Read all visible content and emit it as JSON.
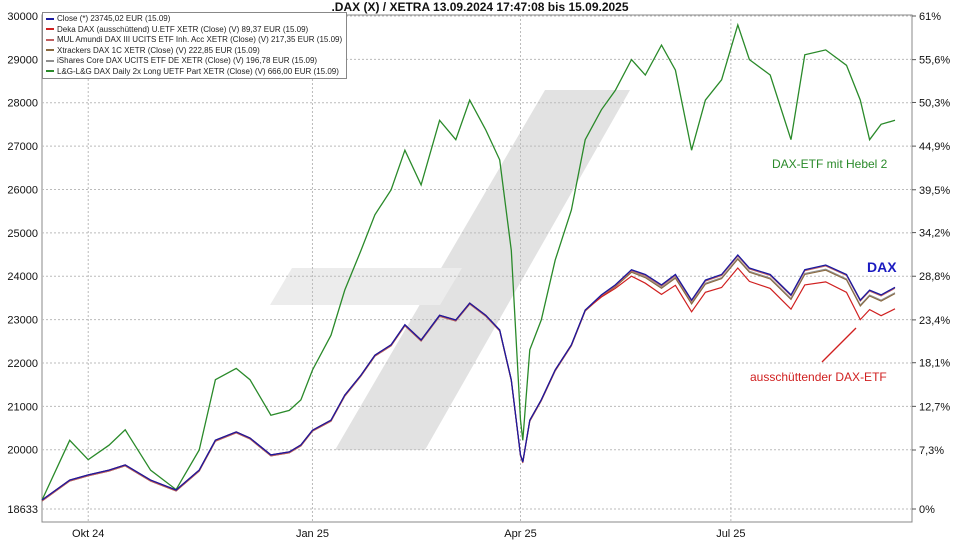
{
  "chart_data": {
    "type": "line",
    "title": ".DAX (X) / XETRA 13.09.2024 17:47:08 bis 15.09.2025",
    "x_days": [
      0,
      12,
      20,
      29,
      36,
      47,
      58,
      68,
      75,
      84,
      90,
      99,
      107,
      112,
      117,
      125,
      131,
      138,
      144,
      151,
      157,
      164,
      172,
      179,
      185,
      192,
      198,
      203,
      207,
      208,
      211,
      216,
      222,
      229,
      235,
      242,
      248,
      255,
      261,
      268,
      274,
      281,
      287,
      294,
      301,
      306,
      315,
      324,
      330,
      339,
      348,
      354,
      358,
      363,
      369
    ],
    "xlim": [
      0,
      369
    ],
    "x_ticks": [
      {
        "day": 20,
        "label": "Okt 24"
      },
      {
        "day": 117,
        "label": "Jan 25"
      },
      {
        "day": 207,
        "label": "Apr 25"
      },
      {
        "day": 298,
        "label": "Jul 25"
      }
    ],
    "ylim_left": [
      18633,
      30000
    ],
    "y_ticks_left": [
      "30000",
      "29000",
      "28000",
      "27000",
      "26000",
      "25000",
      "24000",
      "23000",
      "22000",
      "21000",
      "20000",
      "18633"
    ],
    "y_tick_values_left": [
      30000,
      29000,
      28000,
      27000,
      26000,
      25000,
      24000,
      23000,
      22000,
      21000,
      20000,
      18633
    ],
    "ylim_right": [
      0,
      61
    ],
    "y_ticks_right": [
      "61%",
      "55,6%",
      "50,3%",
      "44,9%",
      "39,5%",
      "34,2%",
      "28,8%",
      "23,4%",
      "18,1%",
      "12,7%",
      "7,3%",
      "0%"
    ],
    "y_tick_values_right": [
      61,
      55.6,
      50.3,
      44.9,
      39.5,
      34.2,
      28.8,
      23.4,
      18.1,
      12.7,
      7.3,
      0
    ],
    "grid": true,
    "legend_placement": "top-left",
    "series": [
      {
        "name": "Close (*) 23745,02 EUR (15.09)",
        "color": "#1a1aa0",
        "axis": "left",
        "values": [
          18840,
          19300,
          19420,
          19530,
          19650,
          19300,
          19070,
          19530,
          20220,
          20410,
          20270,
          19880,
          19950,
          20110,
          20450,
          20680,
          21260,
          21720,
          22180,
          22420,
          22880,
          22530,
          23100,
          22990,
          23380,
          23100,
          22760,
          21610,
          19880,
          19720,
          20680,
          21150,
          21840,
          22420,
          23220,
          23570,
          23800,
          24150,
          24040,
          23800,
          24040,
          23450,
          23910,
          24040,
          24490,
          24190,
          24040,
          23570,
          24150,
          24260,
          24040,
          23450,
          23680,
          23570,
          23745
        ]
      },
      {
        "name": "Deka DAX (ausschüttend) U.ETF XETR (Close) (V) 89,37 EUR (15.09)",
        "color": "#d02020",
        "axis": "left",
        "values": [
          18840,
          19300,
          19420,
          19530,
          19650,
          19300,
          19070,
          19530,
          20220,
          20410,
          20270,
          19880,
          19950,
          20110,
          20450,
          20680,
          21260,
          21720,
          22180,
          22420,
          22880,
          22530,
          23100,
          22990,
          23380,
          23100,
          22760,
          21610,
          19880,
          19720,
          20680,
          21150,
          21840,
          22420,
          23220,
          23520,
          23720,
          24000,
          23840,
          23580,
          23790,
          23180,
          23630,
          23740,
          24190,
          23880,
          23720,
          23240,
          23800,
          23870,
          23630,
          23000,
          23230,
          23090,
          23250
        ]
      },
      {
        "name": "MUL Amundi DAX III UCITS ETF Inh. Acc XETR (Close) (V) 217,35 EUR (15.09)",
        "color": "#c06060",
        "axis": "left",
        "same_as": 0
      },
      {
        "name": "Xtrackers DAX 1C XETR (Close) (V) 222,85 EUR (15.09)",
        "color": "#8a6a40",
        "axis": "left",
        "same_as": 0
      },
      {
        "name": "iShares Core DAX UCITS ETF DE XETR (Close) (V) 196,78 EUR (15.09)",
        "color": "#909090",
        "axis": "left",
        "same_as": 0
      },
      {
        "name": "L&G-L&G DAX Daily 2x Long UETF Part XETR (Close) (V) 666,00 EUR (15.09)",
        "color": "#2a8a2a",
        "axis": "right",
        "values": [
          1.1,
          8.5,
          6.1,
          7.9,
          9.8,
          4.8,
          2.4,
          7.3,
          16.0,
          17.4,
          16.0,
          11.6,
          12.2,
          13.5,
          17.2,
          21.5,
          27.1,
          32.0,
          36.4,
          39.5,
          44.4,
          40.1,
          48.1,
          45.7,
          50.6,
          46.9,
          43.2,
          32.0,
          11.0,
          8.5,
          19.7,
          23.4,
          30.8,
          37.0,
          45.7,
          49.4,
          51.8,
          55.6,
          53.7,
          57.4,
          54.3,
          44.4,
          50.6,
          53.1,
          59.9,
          55.6,
          53.7,
          45.7,
          56.2,
          56.8,
          54.9,
          50.6,
          45.7,
          47.6,
          48.1
        ]
      }
    ],
    "annotations": {
      "leveraged": "DAX-ETF mit Hebel 2",
      "dax": "DAX",
      "distributing": "ausschüttender DAX-ETF"
    }
  }
}
